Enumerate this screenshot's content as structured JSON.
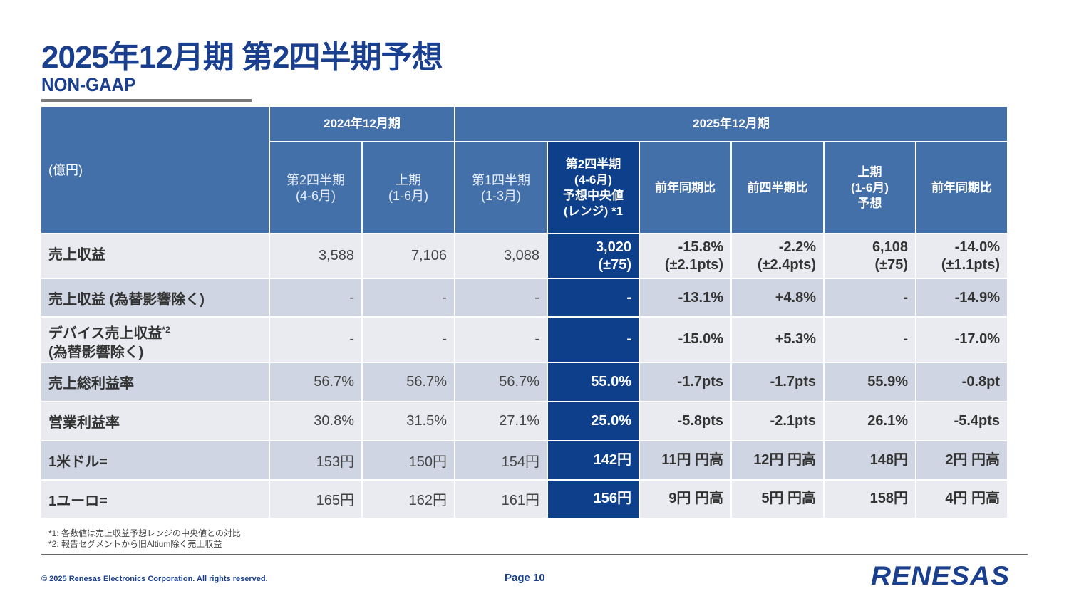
{
  "title": "2025年12月期 第2四半期予想",
  "subtitle": "NON-GAAP",
  "table": {
    "unit": "(億円)",
    "group1": "2024年12月期",
    "group2": "2025年12月期",
    "headers": [
      [
        "第2四半期",
        "(4-6月)"
      ],
      [
        "上期",
        "(1-6月)"
      ],
      [
        "第1四半期",
        "(1-3月)"
      ],
      [
        "第2四半期",
        "(4-6月)",
        "予想中央値",
        "(レンジ) *1"
      ],
      [
        "前年同期比"
      ],
      [
        "前四半期比"
      ],
      [
        "上期",
        "(1-6月)",
        "予想"
      ],
      [
        "前年同期比"
      ]
    ],
    "rows": [
      {
        "label": "売上収益",
        "label2": "",
        "sup": "",
        "cells": [
          "3,588",
          "7,106",
          "3,088",
          "3,020\n(±75)",
          "-15.8%\n(±2.1pts)",
          "-2.2%\n(±2.4pts)",
          "6,108\n(±75)",
          "-14.0%\n(±1.1pts)"
        ]
      },
      {
        "label": "売上収益 (為替影響除く)",
        "label2": "",
        "sup": "",
        "cells": [
          "-",
          "-",
          "-",
          "-",
          "-13.1%",
          "+4.8%",
          "-",
          "-14.9%"
        ]
      },
      {
        "label": "デバイス売上収益",
        "label2": "(為替影響除く)",
        "sup": "*2",
        "cells": [
          "-",
          "-",
          "-",
          "-",
          "-15.0%",
          "+5.3%",
          "-",
          "-17.0%"
        ]
      },
      {
        "label": "売上総利益率",
        "label2": "",
        "sup": "",
        "cells": [
          "56.7%",
          "56.7%",
          "56.7%",
          "55.0%",
          "-1.7pts",
          "-1.7pts",
          "55.9%",
          "-0.8pt"
        ]
      },
      {
        "label": "営業利益率",
        "label2": "",
        "sup": "",
        "cells": [
          "30.8%",
          "31.5%",
          "27.1%",
          "25.0%",
          "-5.8pts",
          "-2.1pts",
          "26.1%",
          "-5.4pts"
        ]
      },
      {
        "label": "1米ドル=",
        "label2": "",
        "sup": "",
        "cells": [
          "153円",
          "150円",
          "154円",
          "142円",
          "11円 円高",
          "12円 円高",
          "148円",
          "2円 円高"
        ]
      },
      {
        "label": "1ユーロ=",
        "label2": "",
        "sup": "",
        "cells": [
          "165円",
          "162円",
          "161円",
          "156円",
          "9円 円高",
          "5円 円高",
          "158円",
          "4円 円高"
        ]
      }
    ]
  },
  "notes": [
    "*1: 各数値は売上収益予想レンジの中央値との対比",
    "*2: 報告セグメントから旧Altium除く売上収益"
  ],
  "footer": {
    "copyright": "© 2025 Renesas Electronics Corporation. All rights reserved.",
    "page": "Page 10",
    "logo": "RENESAS"
  }
}
